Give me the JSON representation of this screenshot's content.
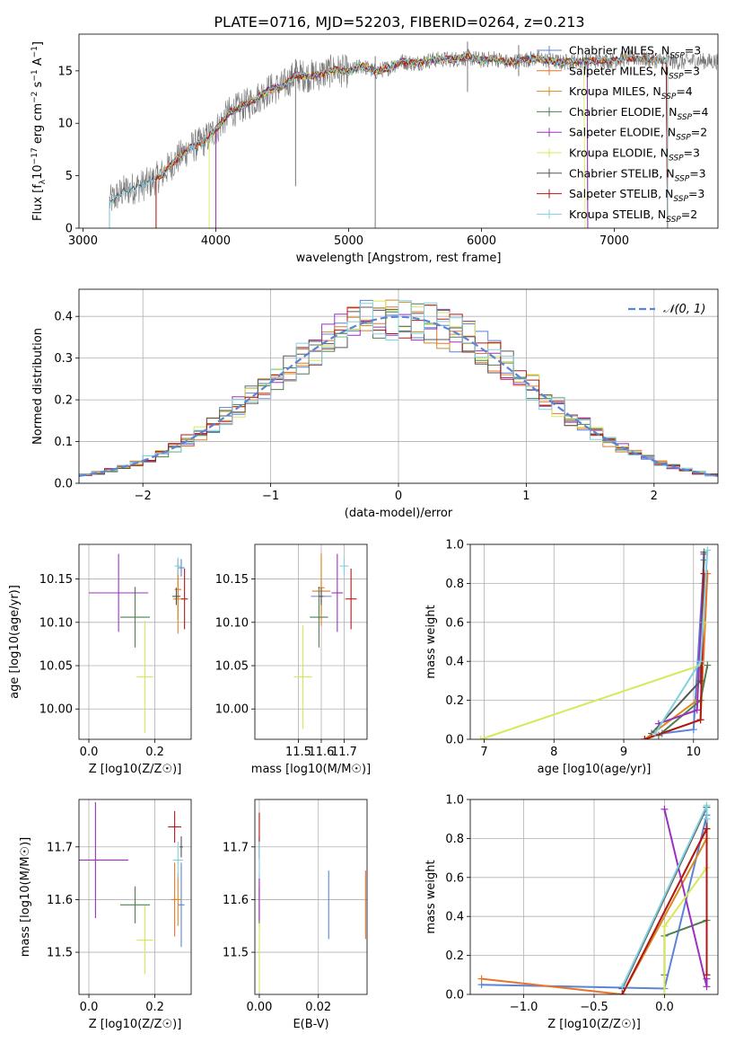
{
  "figure": {
    "title": "PLATE=0716, MJD=52203, FIBERID=0264, z=0.213"
  },
  "colors": [
    "#5b84d6",
    "#e8742a",
    "#d88a20",
    "#4f7f4f",
    "#9b30c0",
    "#d8e85a",
    "#555555",
    "#b01818",
    "#80d0e0"
  ],
  "chart_data": [
    {
      "id": "spectrum",
      "type": "line",
      "title": "PLATE=0716, MJD=52203, FIBERID=0264, z=0.213",
      "xlabel": "wavelength [Angstrom, rest frame]",
      "ylabel": "Flux [f_λ 10^-17 erg cm^-2 s^-1 A^-1]",
      "xlim": [
        2970,
        7780
      ],
      "ylim": [
        0,
        18.5
      ],
      "xticks": [
        3000,
        4000,
        5000,
        6000,
        7000
      ],
      "yticks": [
        0,
        5,
        10,
        15
      ],
      "grid": false,
      "legend": "right",
      "data_x": [
        3200,
        3300,
        3400,
        3500,
        3600,
        3700,
        3800,
        3900,
        4000,
        4100,
        4200,
        4300,
        4400,
        4500,
        4600,
        4700,
        4800,
        4900,
        5000,
        5100,
        5200,
        5300,
        5400,
        5500,
        5600,
        5700,
        5800,
        5900,
        6000,
        6100,
        6200,
        6300,
        6400,
        6500,
        6600,
        6700,
        6800,
        6900,
        7000,
        7100,
        7200,
        7300,
        7400,
        7500,
        7600,
        7700
      ],
      "data_y": [
        2.5,
        3.5,
        3.9,
        4.3,
        5.2,
        6.5,
        7.6,
        8.2,
        9.4,
        11.0,
        11.6,
        12.3,
        13.2,
        13.5,
        14.6,
        14.5,
        14.7,
        15.1,
        14.9,
        15.5,
        14.9,
        15.3,
        15.9,
        15.7,
        16.0,
        16.1,
        16.1,
        16.3,
        16.0,
        16.2,
        15.8,
        16.0,
        16.2,
        16.0,
        15.8,
        15.9,
        15.9,
        16.0,
        16.0,
        16.2,
        16.2,
        16.0,
        16.0,
        15.8,
        16.0,
        15.9
      ],
      "model_starts": [
        3550,
        3550,
        3550,
        4000,
        4000,
        3950,
        3200,
        3550,
        3200
      ],
      "model_ends": [
        7400,
        7400,
        7400,
        6800,
        6800,
        6780,
        7400,
        7400,
        7400
      ],
      "series": [
        {
          "name": "Chabrier MILES, N",
          "sub": "SSP",
          "suffix": "=3"
        },
        {
          "name": "Salpeter MILES, N",
          "sub": "SSP",
          "suffix": "=3"
        },
        {
          "name": "Kroupa MILES, N",
          "sub": "SSP",
          "suffix": "=4"
        },
        {
          "name": "Chabrier ELODIE, N",
          "sub": "SSP",
          "suffix": "=4"
        },
        {
          "name": "Salpeter ELODIE, N",
          "sub": "SSP",
          "suffix": "=2"
        },
        {
          "name": "Kroupa ELODIE, N",
          "sub": "SSP",
          "suffix": "=3"
        },
        {
          "name": "Chabrier STELIB, N",
          "sub": "SSP",
          "suffix": "=3"
        },
        {
          "name": "Salpeter STELIB, N",
          "sub": "SSP",
          "suffix": "=3"
        },
        {
          "name": "Kroupa STELIB, N",
          "sub": "SSP",
          "suffix": "=2"
        }
      ]
    },
    {
      "id": "residuals",
      "type": "line",
      "xlabel": "(data-model)/error",
      "ylabel": "Normed distribution",
      "xlim": [
        -2.5,
        2.5
      ],
      "ylim": [
        0,
        0.465
      ],
      "xticks": [
        -2,
        -1,
        0,
        1,
        2
      ],
      "yticks": [
        0.0,
        0.1,
        0.2,
        0.3,
        0.4
      ],
      "grid": true,
      "legend": "top-right",
      "legend_label": "𝒩(0, 1)",
      "bin_width": 0.1
    },
    {
      "id": "age-vs-Z",
      "type": "scatter",
      "xlabel": "Z [log10(Z/Z☉)]",
      "ylabel": "age [log10(age/yr)]",
      "xlim": [
        -0.03,
        0.31
      ],
      "ylim": [
        9.965,
        10.19
      ],
      "xticks": [
        0.0,
        0.2
      ],
      "yticks": [
        10.0,
        10.05,
        10.1,
        10.15
      ],
      "grid": true,
      "points": [
        {
          "x": 0.28,
          "xe": 0.02,
          "y": 10.163,
          "ye": 0.01
        },
        {
          "x": 0.27,
          "xe": 0.02,
          "y": 10.138,
          "ye": 0.035
        },
        {
          "x": 0.27,
          "xe": 0.03,
          "y": 10.127,
          "ye": 0.04
        },
        {
          "x": 0.14,
          "xe": 0.09,
          "y": 10.106,
          "ye": 0.035
        },
        {
          "x": 0.09,
          "xe": 0.18,
          "y": 10.134,
          "ye": 0.045
        },
        {
          "x": 0.17,
          "xe": 0.05,
          "y": 10.037,
          "ye": 0.065
        },
        {
          "x": 0.265,
          "xe": 0.025,
          "y": 10.13,
          "ye": 0.01
        },
        {
          "x": 0.29,
          "xe": 0.02,
          "y": 10.127,
          "ye": 0.035
        },
        {
          "x": 0.27,
          "xe": 0.02,
          "y": 10.165,
          "ye": 0.01
        }
      ]
    },
    {
      "id": "age-vs-mass",
      "type": "scatter",
      "xlabel": "mass [log10(M/M☉)]",
      "ylabel": "",
      "xlim": [
        11.31,
        11.8
      ],
      "ylim": [
        9.965,
        10.19
      ],
      "xticks": [
        11.5,
        11.6,
        11.7
      ],
      "yticks": [
        10.0,
        10.05,
        10.1,
        10.15
      ],
      "grid": true,
      "points": [
        {
          "x": 11.6,
          "xe": 0.09,
          "y": 10.13,
          "ye": 0.02
        },
        {
          "x": 11.6,
          "xe": 0.08,
          "y": 10.136,
          "ye": 0.04
        },
        {
          "x": 11.6,
          "xe": 0.03,
          "y": 10.14,
          "ye": 0.04
        },
        {
          "x": 11.59,
          "xe": 0.08,
          "y": 10.106,
          "ye": 0.035
        },
        {
          "x": 11.67,
          "xe": 0.05,
          "y": 10.134,
          "ye": 0.045
        },
        {
          "x": 11.52,
          "xe": 0.08,
          "y": 10.037,
          "ye": 0.06
        },
        {
          "x": 11.6,
          "xe": 0.02,
          "y": 10.13,
          "ye": 0.01
        },
        {
          "x": 11.73,
          "xe": 0.05,
          "y": 10.127,
          "ye": 0.035
        },
        {
          "x": 11.7,
          "xe": 0.04,
          "y": 10.165,
          "ye": 0.01
        }
      ]
    },
    {
      "id": "weight-vs-age",
      "type": "line",
      "xlabel": "age [log10(age/yr)]",
      "ylabel": "mass weight",
      "xlim": [
        6.8,
        10.35
      ],
      "ylim": [
        0,
        1
      ],
      "xticks": [
        7,
        8,
        9,
        10
      ],
      "yticks": [
        0.0,
        0.2,
        0.4,
        0.6,
        0.8,
        1.0
      ],
      "grid": true,
      "series": [
        {
          "x": [
            9.55,
            10.0,
            10.15
          ],
          "y": [
            0.03,
            0.05,
            0.92
          ]
        },
        {
          "x": [
            9.3,
            10.1,
            10.2
          ],
          "y": [
            0.0,
            0.1,
            0.85
          ]
        },
        {
          "x": [
            9.3,
            10.05,
            10.15
          ],
          "y": [
            0.0,
            0.2,
            0.8
          ]
        },
        {
          "x": [
            9.5,
            10.1,
            10.2
          ],
          "y": [
            0.02,
            0.2,
            0.38
          ]
        },
        {
          "x": [
            9.5,
            10.05,
            10.15
          ],
          "y": [
            0.08,
            0.15,
            0.95
          ]
        },
        {
          "x": [
            6.95,
            10.1,
            10.15
          ],
          "y": [
            0.0,
            0.38,
            0.6
          ]
        },
        {
          "x": [
            9.4,
            10.1,
            10.15
          ],
          "y": [
            0.03,
            0.3,
            0.96
          ]
        },
        {
          "x": [
            9.3,
            10.1,
            10.15
          ],
          "y": [
            0.0,
            0.1,
            0.85
          ]
        },
        {
          "x": [
            9.45,
            10.1,
            10.2
          ],
          "y": [
            0.03,
            0.4,
            0.97
          ]
        }
      ]
    },
    {
      "id": "mass-vs-Z",
      "type": "scatter",
      "xlabel": "Z [log10(Z/Z☉)]",
      "ylabel": "mass [log10(M/M☉)]",
      "xlim": [
        -0.03,
        0.31
      ],
      "ylim": [
        11.42,
        11.79
      ],
      "xticks": [
        0.0,
        0.2
      ],
      "yticks": [
        11.5,
        11.6,
        11.7
      ],
      "grid": true,
      "points": [
        {
          "x": 0.28,
          "xe": 0.02,
          "y": 11.59,
          "ye": 0.08
        },
        {
          "x": 0.26,
          "xe": 0.02,
          "y": 11.6,
          "ye": 0.07
        },
        {
          "x": 0.27,
          "xe": 0.02,
          "y": 11.6,
          "ye": 0.05
        },
        {
          "x": 0.14,
          "xe": 0.09,
          "y": 11.59,
          "ye": 0.035
        },
        {
          "x": 0.02,
          "xe": 0.2,
          "y": 11.675,
          "ye": 0.11
        },
        {
          "x": 0.17,
          "xe": 0.05,
          "y": 11.523,
          "ye": 0.065
        },
        {
          "x": 0.28,
          "xe": 0.01,
          "y": 11.7,
          "ye": 0.02
        },
        {
          "x": 0.26,
          "xe": 0.04,
          "y": 11.738,
          "ye": 0.03
        },
        {
          "x": 0.27,
          "xe": 0.03,
          "y": 11.675,
          "ye": 0.035
        }
      ]
    },
    {
      "id": "mass-vs-ebv",
      "type": "scatter",
      "xlabel": "E(B-V)",
      "ylabel": "",
      "xlim": [
        -0.0015,
        0.0365
      ],
      "ylim": [
        11.42,
        11.79
      ],
      "xticks": [
        0.0,
        0.02
      ],
      "yticks": [
        11.5,
        11.6,
        11.7
      ],
      "grid": true,
      "points": [
        {
          "x": 0.0235,
          "y": 11.59,
          "ye": 0.065
        },
        {
          "x": 0.036,
          "y": 11.59,
          "ye": 0.065
        },
        {
          "x": 0.0,
          "y": 11.6,
          "ye": 0.05
        },
        {
          "x": 0.0,
          "y": 11.59,
          "ye": 0.035
        },
        {
          "x": 0.0,
          "y": 11.6,
          "ye": 0.04
        },
        {
          "x": 0.0,
          "y": 11.49,
          "ye": 0.065
        },
        {
          "x": 0.0,
          "y": 11.7,
          "ye": 0.02
        },
        {
          "x": 0.0,
          "y": 11.72,
          "ye": 0.045
        },
        {
          "x": 0.0,
          "y": 11.675,
          "ye": 0.035
        }
      ]
    },
    {
      "id": "weight-vs-Z",
      "type": "line",
      "xlabel": "Z [log10(Z/Z☉)]",
      "ylabel": "mass weight",
      "xlim": [
        -1.38,
        0.38
      ],
      "ylim": [
        0,
        1
      ],
      "xticks": [
        -1.0,
        -0.5,
        0.0
      ],
      "yticks": [
        0.0,
        0.2,
        0.4,
        0.6,
        0.8,
        1.0
      ],
      "grid": true,
      "series": [
        {
          "x": [
            -1.3,
            0.0,
            0.3
          ],
          "y": [
            0.05,
            0.03,
            0.92
          ]
        },
        {
          "x": [
            -1.3,
            -0.3,
            0.3
          ],
          "y": [
            0.08,
            0.0,
            0.85
          ]
        },
        {
          "x": [
            -0.3,
            0.3,
            0.3
          ],
          "y": [
            0.0,
            0.8,
            0.1
          ]
        },
        {
          "x": [
            0.0,
            0.0,
            0.3
          ],
          "y": [
            0.1,
            0.3,
            0.38
          ]
        },
        {
          "x": [
            0.0,
            0.3,
            0.3
          ],
          "y": [
            0.95,
            0.04,
            0.08
          ]
        },
        {
          "x": [
            0.0,
            0.0,
            0.3
          ],
          "y": [
            0.0,
            0.35,
            0.65
          ]
        },
        {
          "x": [
            -0.3,
            0.3,
            0.3
          ],
          "y": [
            0.03,
            0.96,
            0.85
          ]
        },
        {
          "x": [
            -0.3,
            0.3,
            0.3
          ],
          "y": [
            0.0,
            0.85,
            0.1
          ]
        },
        {
          "x": [
            -0.3,
            0.3,
            0.3
          ],
          "y": [
            0.04,
            0.97,
            0.9
          ]
        }
      ]
    }
  ]
}
